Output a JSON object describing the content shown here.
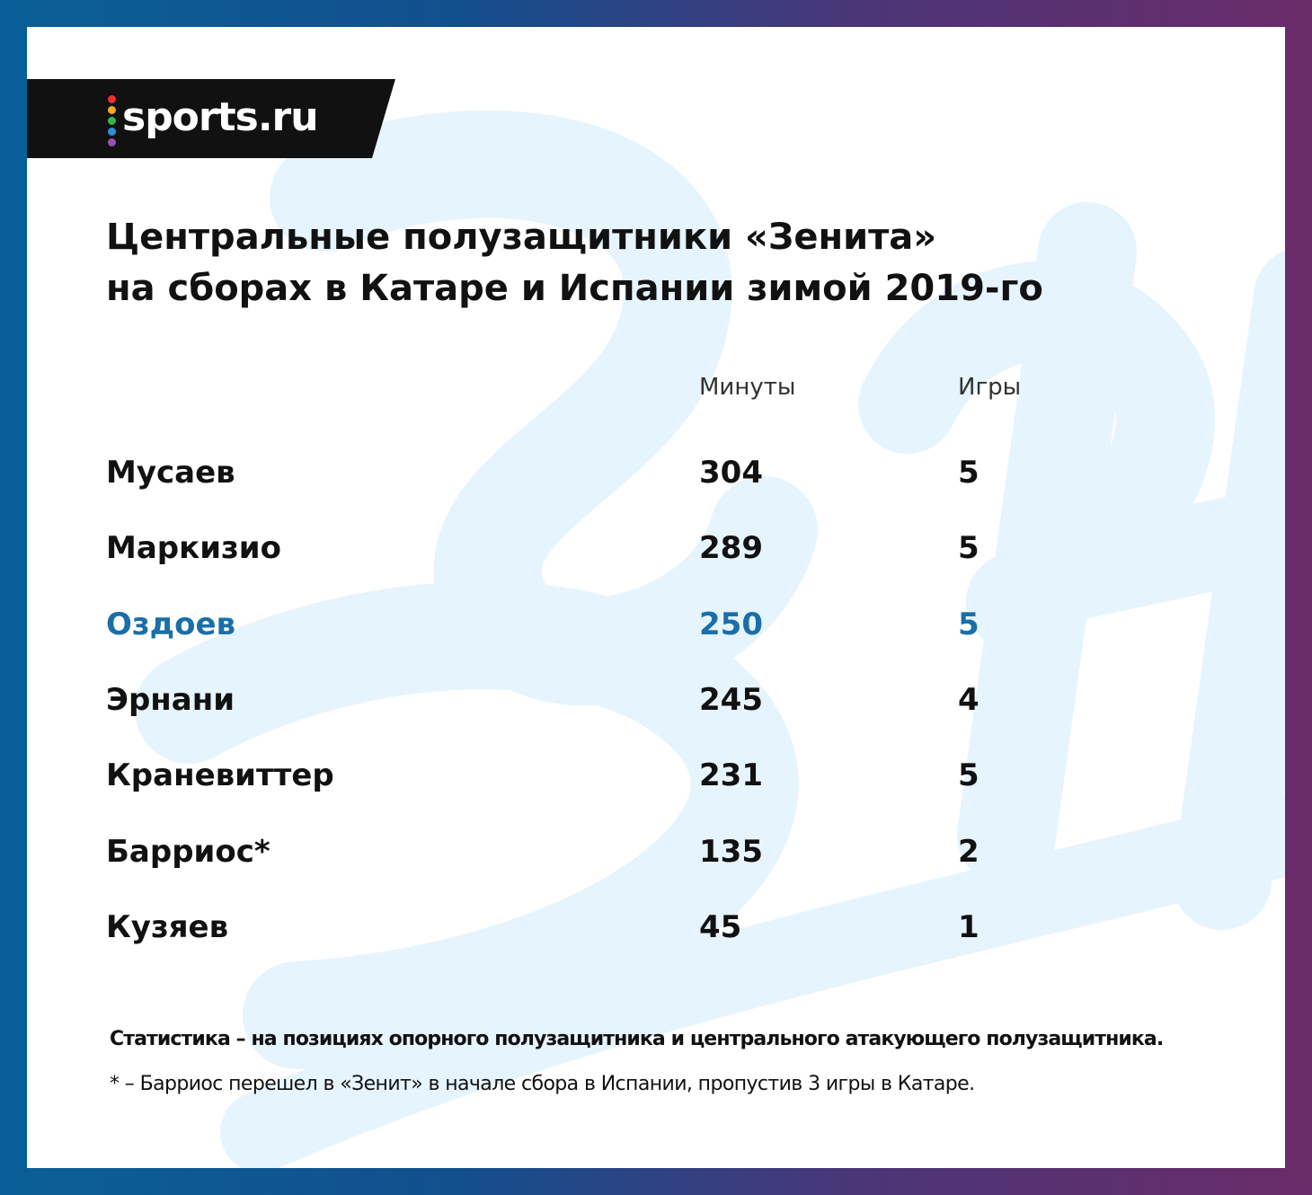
{
  "brand": {
    "logo_text": "sports.ru",
    "dot_colors": [
      "#e8312f",
      "#f5a623",
      "#34b34a",
      "#2a8fd6",
      "#9b4fb5"
    ]
  },
  "colors": {
    "frame_left": "#0a5f99",
    "frame_right": "#6b2b69",
    "highlight": "#1a6fa8",
    "watermark": "#e6f4fd"
  },
  "chart_data": {
    "type": "table",
    "title": [
      "Центральные полузащитники «Зенита»",
      "на сборах в Катаре и Испании зимой 2019-го"
    ],
    "columns": [
      "",
      "Минуты",
      "Игры"
    ],
    "rows": [
      {
        "name": "Мусаев",
        "minutes": "304",
        "games": "5",
        "highlight": false
      },
      {
        "name": "Маркизио",
        "minutes": "289",
        "games": "5",
        "highlight": false
      },
      {
        "name": "Оздоев",
        "minutes": "250",
        "games": "5",
        "highlight": true
      },
      {
        "name": "Эрнани",
        "minutes": "245",
        "games": "4",
        "highlight": false
      },
      {
        "name": "Краневиттер",
        "minutes": "231",
        "games": "5",
        "highlight": false
      },
      {
        "name": "Барриос*",
        "minutes": "135",
        "games": "2",
        "highlight": false
      },
      {
        "name": "Кузяев",
        "minutes": "45",
        "games": "1",
        "highlight": false
      }
    ]
  },
  "notes": {
    "stats_note": "Статистика – на позициях опорного полузащитника и центрального атакующего полузащитника.",
    "footnote": "* – Барриос перешел в «Зенит» в начале сбора в Испании, пропустив 3 игры в Катаре."
  }
}
